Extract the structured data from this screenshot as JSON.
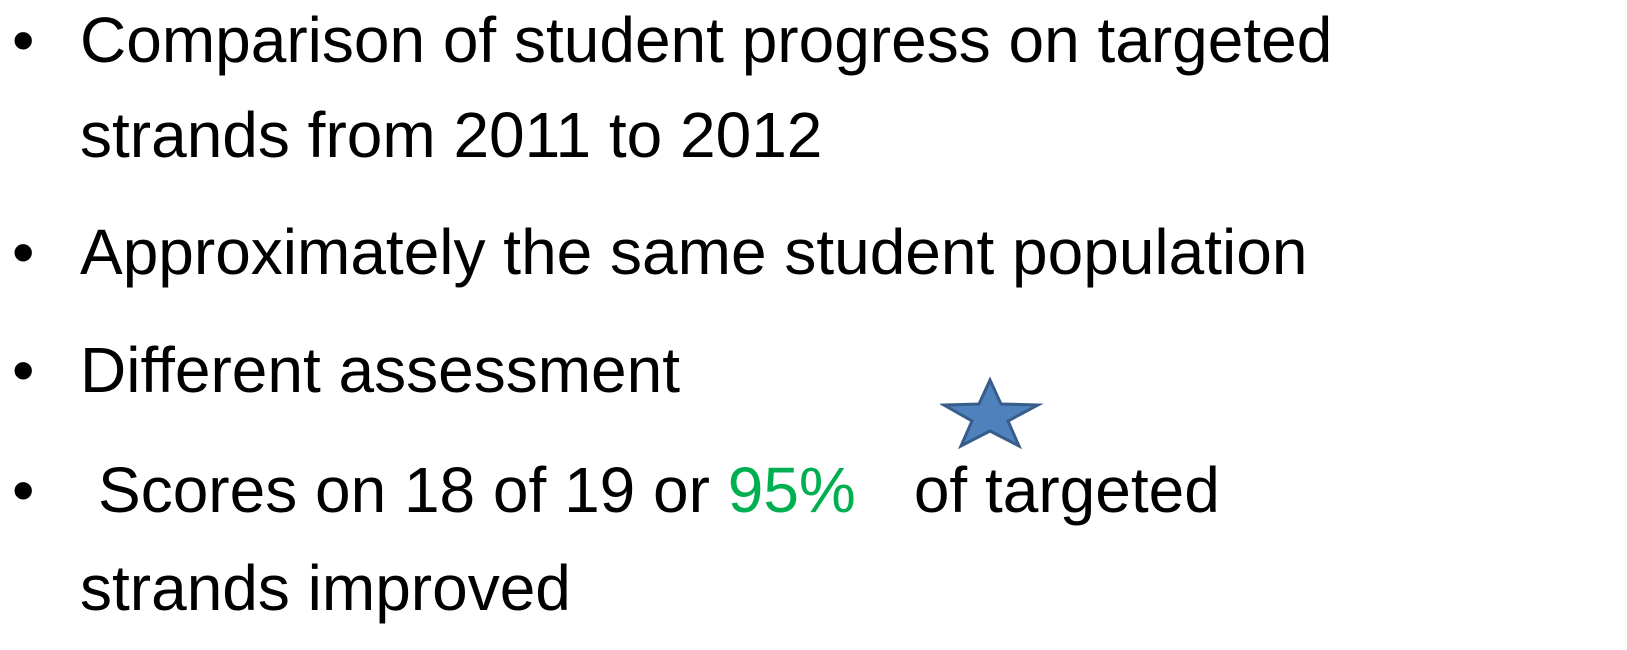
{
  "bullets": [
    {
      "lines": [
        "Comparison of student progress on targeted",
        "strands from 2011 to 2012"
      ]
    },
    {
      "lines": [
        "Approximately the same student population"
      ]
    },
    {
      "lines": [
        "Different assessment"
      ]
    },
    {
      "parts": [
        {
          "text": "Scores on 18 of 19 or"
        },
        {
          "text": "95%",
          "color": "#00b050"
        },
        {
          "text": "of targeted"
        }
      ],
      "continuation": "strands improved"
    }
  ]
}
